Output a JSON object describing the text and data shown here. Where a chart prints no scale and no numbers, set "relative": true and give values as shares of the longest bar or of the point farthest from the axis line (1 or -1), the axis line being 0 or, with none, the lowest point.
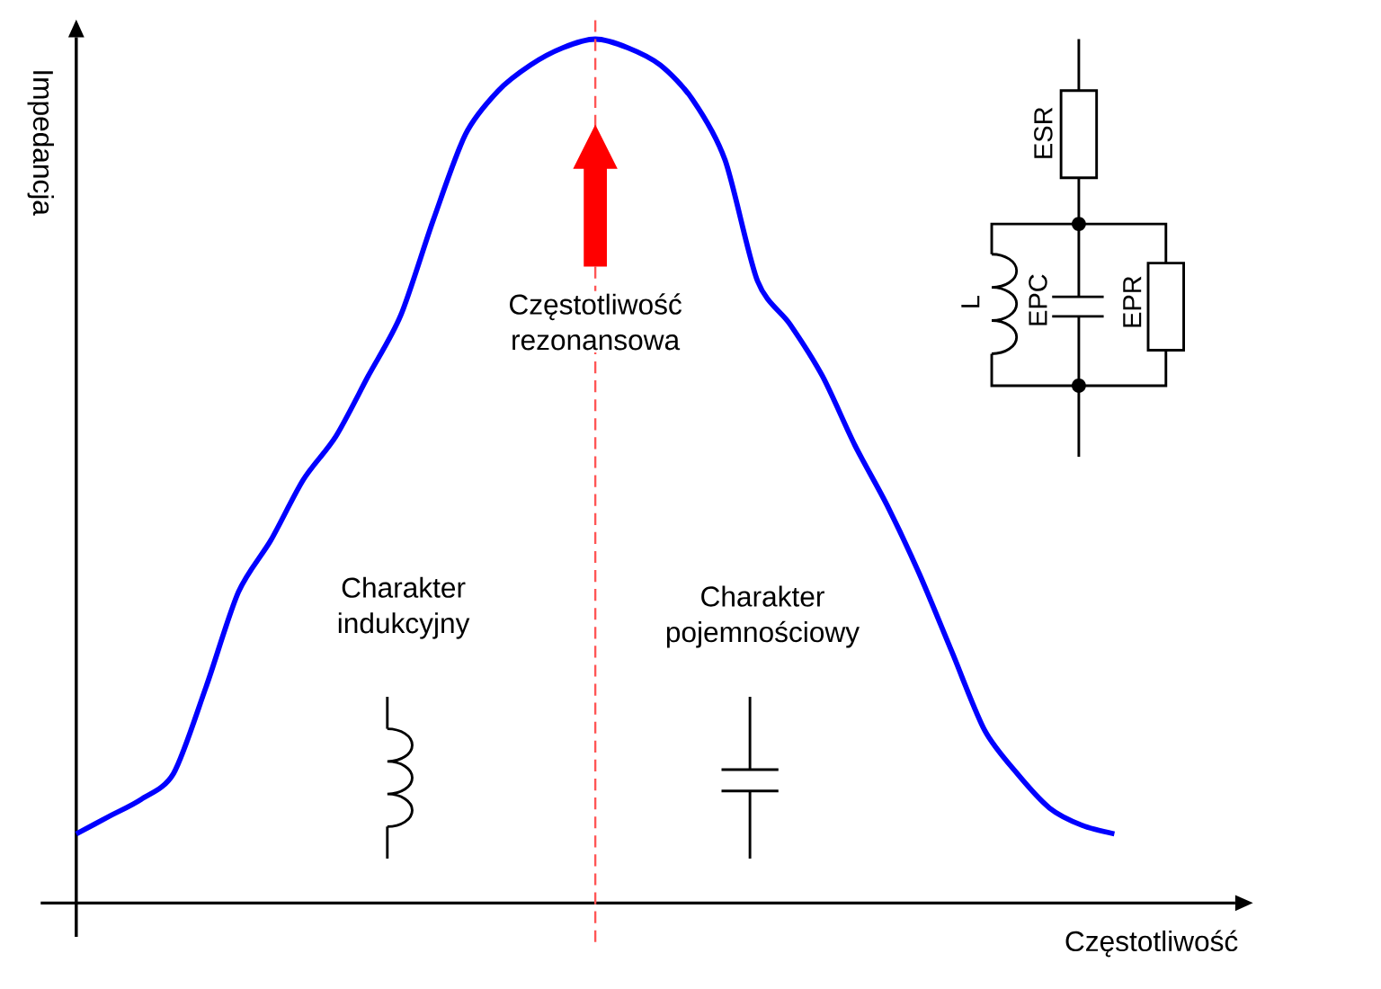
{
  "chart_data": {
    "type": "line",
    "relative": true,
    "xlabel": "Częstotliwość",
    "ylabel": "Impedancja",
    "categories": [
      null,
      null,
      null,
      null,
      null,
      null,
      null,
      null,
      null,
      null,
      null,
      null,
      null,
      null,
      null,
      null,
      null,
      null,
      null,
      null,
      null,
      null,
      null,
      null,
      null,
      null,
      null,
      null,
      null,
      null,
      null,
      null,
      null
    ],
    "series": [
      {
        "color": "#0000ff",
        "values": [
          0.08,
          0.1,
          0.12,
          0.15,
          0.25,
          0.36,
          0.42,
          0.49,
          0.54,
          0.61,
          0.68,
          0.79,
          0.89,
          0.94,
          0.97,
          0.99,
          1,
          0.99,
          0.97,
          0.93,
          0.86,
          0.72,
          0.67,
          0.61,
          0.53,
          0.46,
          0.38,
          0.29,
          0.2,
          0.15,
          0.11,
          0.09,
          0.08
        ]
      }
    ],
    "annotations": [
      "Częstotliwość rezonansowa",
      "Charakter indukcyjny",
      "Charakter pojemnościowy",
      "ESR",
      "L",
      "EPC",
      "EPR"
    ]
  }
}
